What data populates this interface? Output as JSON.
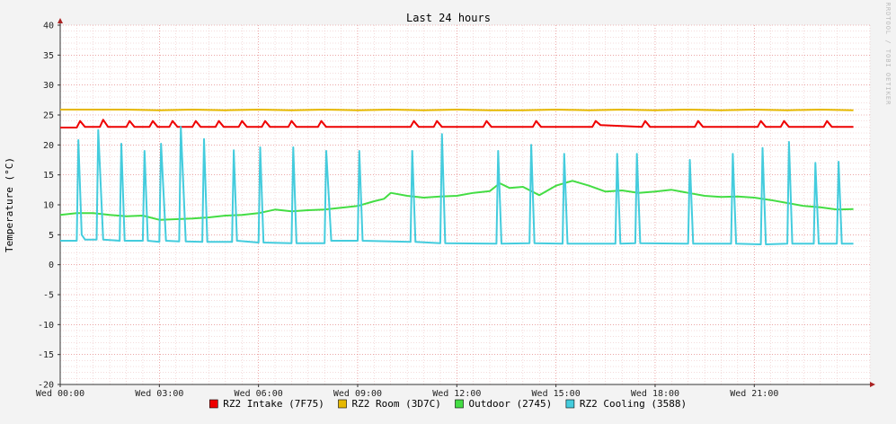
{
  "chart_data": {
    "type": "line",
    "title": "Last 24 hours",
    "ylabel": "Temperature (°C)",
    "xlabel": "",
    "watermark": "RRDTOOL / TOBI OETIKER",
    "ylim": [
      -20,
      40
    ],
    "y_ticks": [
      -20,
      -15,
      -10,
      -5,
      0,
      5,
      10,
      15,
      20,
      25,
      30,
      35,
      40
    ],
    "xlim_hours": [
      0,
      24.5
    ],
    "x_tick_labels": [
      {
        "hour": 0,
        "label": "Wed 00:00"
      },
      {
        "hour": 3,
        "label": "Wed 03:00"
      },
      {
        "hour": 6,
        "label": "Wed 06:00"
      },
      {
        "hour": 9,
        "label": "Wed 09:00"
      },
      {
        "hour": 12,
        "label": "Wed 12:00"
      },
      {
        "hour": 15,
        "label": "Wed 15:00"
      },
      {
        "hour": 18,
        "label": "Wed 18:00"
      },
      {
        "hour": 21,
        "label": "Wed 21:00"
      }
    ],
    "grid": true,
    "legend_position": "bottom",
    "series": [
      {
        "name": "RZ2 Intake (7F75)",
        "color": "#ee0000",
        "points": [
          [
            0,
            22.9
          ],
          [
            0.5,
            22.9
          ],
          [
            0.6,
            24.0
          ],
          [
            0.75,
            23.0
          ],
          [
            1.2,
            23.0
          ],
          [
            1.3,
            24.2
          ],
          [
            1.45,
            23.0
          ],
          [
            2.0,
            23.0
          ],
          [
            2.1,
            24.0
          ],
          [
            2.25,
            23.0
          ],
          [
            2.7,
            23.0
          ],
          [
            2.8,
            24.0
          ],
          [
            2.95,
            23.0
          ],
          [
            3.3,
            23.0
          ],
          [
            3.4,
            24.0
          ],
          [
            3.55,
            23.0
          ],
          [
            4.0,
            23.0
          ],
          [
            4.1,
            24.0
          ],
          [
            4.25,
            23.0
          ],
          [
            4.7,
            23.0
          ],
          [
            4.8,
            24.0
          ],
          [
            4.95,
            23.0
          ],
          [
            5.4,
            23.0
          ],
          [
            5.5,
            24.0
          ],
          [
            5.65,
            23.0
          ],
          [
            6.1,
            23.0
          ],
          [
            6.2,
            24.0
          ],
          [
            6.35,
            23.0
          ],
          [
            6.9,
            23.0
          ],
          [
            7.0,
            24.0
          ],
          [
            7.15,
            23.0
          ],
          [
            7.8,
            23.0
          ],
          [
            7.9,
            24.0
          ],
          [
            8.05,
            23.0
          ],
          [
            10.6,
            23.0
          ],
          [
            10.7,
            24.0
          ],
          [
            10.85,
            23.0
          ],
          [
            11.3,
            23.0
          ],
          [
            11.4,
            24.0
          ],
          [
            11.55,
            23.0
          ],
          [
            12.8,
            23.0
          ],
          [
            12.9,
            24.0
          ],
          [
            13.05,
            23.0
          ],
          [
            14.3,
            23.0
          ],
          [
            14.4,
            24.0
          ],
          [
            14.55,
            23.0
          ],
          [
            16.1,
            23.0
          ],
          [
            16.2,
            24.0
          ],
          [
            16.35,
            23.3
          ],
          [
            17.6,
            23.0
          ],
          [
            17.7,
            24.0
          ],
          [
            17.85,
            23.0
          ],
          [
            19.2,
            23.0
          ],
          [
            19.3,
            24.0
          ],
          [
            19.45,
            23.0
          ],
          [
            21.1,
            23.0
          ],
          [
            21.2,
            24.0
          ],
          [
            21.35,
            23.0
          ],
          [
            21.8,
            23.0
          ],
          [
            21.9,
            24.0
          ],
          [
            22.05,
            23.0
          ],
          [
            23.1,
            23.0
          ],
          [
            23.2,
            24.0
          ],
          [
            23.35,
            23.0
          ],
          [
            24.0,
            23.0
          ]
        ]
      },
      {
        "name": "RZ2 Room (3D7C)",
        "color": "#e6b800",
        "points": [
          [
            0,
            25.9
          ],
          [
            1,
            25.9
          ],
          [
            2,
            25.9
          ],
          [
            3,
            25.8
          ],
          [
            4,
            25.9
          ],
          [
            5,
            25.8
          ],
          [
            6,
            25.9
          ],
          [
            7,
            25.8
          ],
          [
            8,
            25.9
          ],
          [
            9,
            25.8
          ],
          [
            10,
            25.9
          ],
          [
            11,
            25.8
          ],
          [
            12,
            25.9
          ],
          [
            13,
            25.8
          ],
          [
            14,
            25.8
          ],
          [
            15,
            25.9
          ],
          [
            16,
            25.8
          ],
          [
            17,
            25.9
          ],
          [
            18,
            25.8
          ],
          [
            19,
            25.9
          ],
          [
            20,
            25.8
          ],
          [
            21,
            25.9
          ],
          [
            22,
            25.8
          ],
          [
            23,
            25.9
          ],
          [
            24,
            25.8
          ]
        ]
      },
      {
        "name": "Outdoor (2745)",
        "color": "#44dd44",
        "points": [
          [
            0,
            8.3
          ],
          [
            0.5,
            8.6
          ],
          [
            1,
            8.6
          ],
          [
            1.5,
            8.3
          ],
          [
            2,
            8.1
          ],
          [
            2.5,
            8.2
          ],
          [
            3,
            7.5
          ],
          [
            3.5,
            7.6
          ],
          [
            4,
            7.7
          ],
          [
            4.5,
            7.9
          ],
          [
            5,
            8.2
          ],
          [
            5.5,
            8.3
          ],
          [
            6,
            8.6
          ],
          [
            6.5,
            9.2
          ],
          [
            7,
            8.9
          ],
          [
            7.5,
            9.1
          ],
          [
            8,
            9.2
          ],
          [
            8.5,
            9.5
          ],
          [
            9,
            9.8
          ],
          [
            9.5,
            10.6
          ],
          [
            9.8,
            11.0
          ],
          [
            10,
            12.0
          ],
          [
            10.5,
            11.5
          ],
          [
            11,
            11.2
          ],
          [
            11.5,
            11.4
          ],
          [
            12,
            11.5
          ],
          [
            12.5,
            12.0
          ],
          [
            13,
            12.3
          ],
          [
            13.3,
            13.6
          ],
          [
            13.6,
            12.8
          ],
          [
            14,
            13.0
          ],
          [
            14.5,
            11.6
          ],
          [
            15,
            13.2
          ],
          [
            15.5,
            14.0
          ],
          [
            16,
            13.2
          ],
          [
            16.5,
            12.2
          ],
          [
            17,
            12.4
          ],
          [
            17.5,
            12.0
          ],
          [
            18,
            12.2
          ],
          [
            18.5,
            12.5
          ],
          [
            19,
            12.0
          ],
          [
            19.5,
            11.5
          ],
          [
            20,
            11.3
          ],
          [
            20.5,
            11.4
          ],
          [
            21,
            11.2
          ],
          [
            21.5,
            10.8
          ],
          [
            22,
            10.3
          ],
          [
            22.5,
            9.8
          ],
          [
            23,
            9.6
          ],
          [
            23.5,
            9.2
          ],
          [
            24,
            9.3
          ]
        ]
      },
      {
        "name": "RZ2 Cooling (3588)",
        "color": "#44ccdd",
        "points": [
          [
            0,
            4.0
          ],
          [
            0.5,
            4.0
          ],
          [
            0.55,
            20.8
          ],
          [
            0.65,
            5.0
          ],
          [
            0.75,
            4.2
          ],
          [
            1.1,
            4.2
          ],
          [
            1.15,
            22.5
          ],
          [
            1.3,
            4.2
          ],
          [
            1.8,
            4.0
          ],
          [
            1.85,
            20.2
          ],
          [
            1.95,
            4.0
          ],
          [
            2.5,
            4.0
          ],
          [
            2.55,
            19.0
          ],
          [
            2.65,
            4.0
          ],
          [
            3.0,
            3.8
          ],
          [
            3.05,
            20.2
          ],
          [
            3.2,
            4.0
          ],
          [
            3.6,
            3.9
          ],
          [
            3.65,
            23.0
          ],
          [
            3.8,
            3.9
          ],
          [
            4.3,
            3.8
          ],
          [
            4.35,
            21.0
          ],
          [
            4.45,
            3.8
          ],
          [
            5.2,
            3.8
          ],
          [
            5.25,
            19.1
          ],
          [
            5.35,
            4.0
          ],
          [
            6.0,
            3.7
          ],
          [
            6.05,
            19.6
          ],
          [
            6.15,
            3.7
          ],
          [
            7.0,
            3.6
          ],
          [
            7.05,
            19.6
          ],
          [
            7.15,
            3.6
          ],
          [
            8.0,
            3.6
          ],
          [
            8.05,
            19.0
          ],
          [
            8.2,
            4.0
          ],
          [
            9.0,
            4.0
          ],
          [
            9.05,
            19.0
          ],
          [
            9.15,
            4.0
          ],
          [
            10.6,
            3.8
          ],
          [
            10.65,
            19.0
          ],
          [
            10.75,
            3.8
          ],
          [
            11.5,
            3.6
          ],
          [
            11.55,
            21.8
          ],
          [
            11.65,
            3.6
          ],
          [
            13.2,
            3.5
          ],
          [
            13.25,
            19.0
          ],
          [
            13.35,
            3.5
          ],
          [
            14.2,
            3.6
          ],
          [
            14.25,
            20.0
          ],
          [
            14.35,
            3.6
          ],
          [
            15.2,
            3.5
          ],
          [
            15.25,
            18.5
          ],
          [
            15.35,
            3.5
          ],
          [
            16.8,
            3.5
          ],
          [
            16.85,
            18.5
          ],
          [
            16.95,
            3.5
          ],
          [
            17.4,
            3.6
          ],
          [
            17.45,
            18.5
          ],
          [
            17.55,
            3.6
          ],
          [
            19.0,
            3.5
          ],
          [
            19.05,
            17.5
          ],
          [
            19.15,
            3.5
          ],
          [
            20.3,
            3.5
          ],
          [
            20.35,
            18.5
          ],
          [
            20.45,
            3.5
          ],
          [
            21.2,
            3.4
          ],
          [
            21.25,
            19.5
          ],
          [
            21.35,
            3.4
          ],
          [
            22.0,
            3.5
          ],
          [
            22.05,
            20.5
          ],
          [
            22.15,
            3.5
          ],
          [
            22.8,
            3.5
          ],
          [
            22.85,
            17.0
          ],
          [
            22.95,
            3.5
          ],
          [
            23.5,
            3.5
          ],
          [
            23.55,
            17.2
          ],
          [
            23.65,
            3.5
          ],
          [
            24.0,
            3.5
          ]
        ]
      }
    ]
  }
}
